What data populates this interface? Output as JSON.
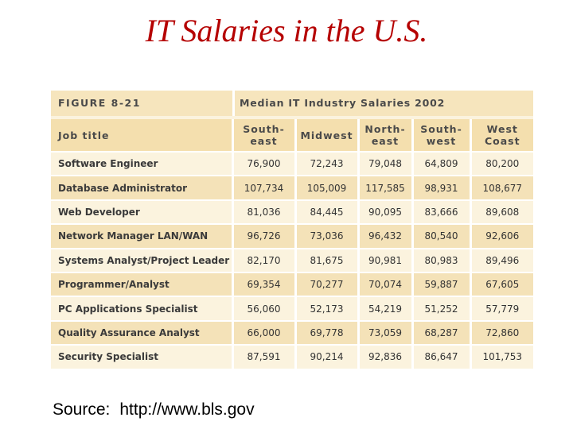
{
  "slide": {
    "title": "IT Salaries in the U.S."
  },
  "figure": {
    "label": "FIGURE 8-21",
    "caption": "Median IT Industry Salaries 2002",
    "columns": [
      "Job title",
      "South-\neast",
      "Midwest",
      "North-\neast",
      "South-\nwest",
      "West\nCoast"
    ],
    "rows": [
      [
        "Software Engineer",
        "76,900",
        "72,243",
        "79,048",
        "64,809",
        "80,200"
      ],
      [
        "Database Administrator",
        "107,734",
        "105,009",
        "117,585",
        "98,931",
        "108,677"
      ],
      [
        "Web Developer",
        "81,036",
        "84,445",
        "90,095",
        "83,666",
        "89,608"
      ],
      [
        "Network Manager LAN/WAN",
        "96,726",
        "73,036",
        "96,432",
        "80,540",
        "92,606"
      ],
      [
        "Systems Analyst/Project Leader",
        "82,170",
        "81,675",
        "90,981",
        "80,983",
        "89,496"
      ],
      [
        "Programmer/Analyst",
        "69,354",
        "70,277",
        "70,074",
        "59,887",
        "67,605"
      ],
      [
        "PC Applications Specialist",
        "56,060",
        "52,173",
        "54,219",
        "51,252",
        "57,779"
      ],
      [
        "Quality Assurance Analyst",
        "66,000",
        "69,778",
        "73,059",
        "68,287",
        "72,860"
      ],
      [
        "Security Specialist",
        "87,591",
        "90,214",
        "92,836",
        "86,647",
        "101,753"
      ]
    ]
  },
  "source": {
    "label": "Source:",
    "url": "http://www.bls.gov"
  },
  "colors": {
    "title": "#b50000",
    "header_band": "#f6e5bd",
    "stripe": "#f4e2b8",
    "panel": "#fbf3de"
  }
}
